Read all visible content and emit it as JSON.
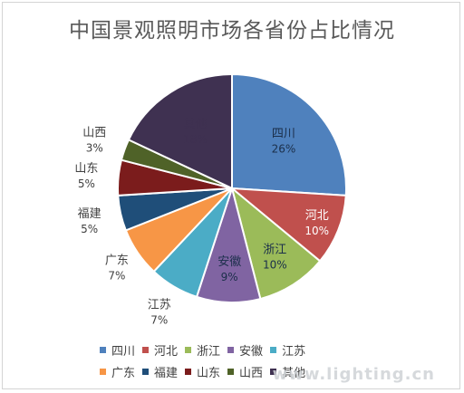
{
  "chart_data": {
    "type": "pie",
    "title": "中国景观照明市场各省份占比情况",
    "slices": [
      {
        "name": "四川",
        "value": 26,
        "label": "26%",
        "color": "#4f81bd"
      },
      {
        "name": "河北",
        "value": 10,
        "label": "10%",
        "color": "#c0504d"
      },
      {
        "name": "浙江",
        "value": 10,
        "label": "10%",
        "color": "#9bbb59"
      },
      {
        "name": "安徽",
        "value": 9,
        "label": "9%",
        "color": "#8064a2"
      },
      {
        "name": "江苏",
        "value": 7,
        "label": "7%",
        "color": "#4bacc6"
      },
      {
        "name": "广东",
        "value": 7,
        "label": "7%",
        "color": "#f79646"
      },
      {
        "name": "福建",
        "value": 5,
        "label": "5%",
        "color": "#1f4e79"
      },
      {
        "name": "山东",
        "value": 5,
        "label": "5%",
        "color": "#7b1c1c"
      },
      {
        "name": "山西",
        "value": 3,
        "label": "3%",
        "color": "#4f6228"
      },
      {
        "name": "其他",
        "value": 18,
        "label": "18%",
        "color": "#3f3151"
      }
    ],
    "legend_position": "bottom"
  },
  "watermark": "www.lighting.cn"
}
